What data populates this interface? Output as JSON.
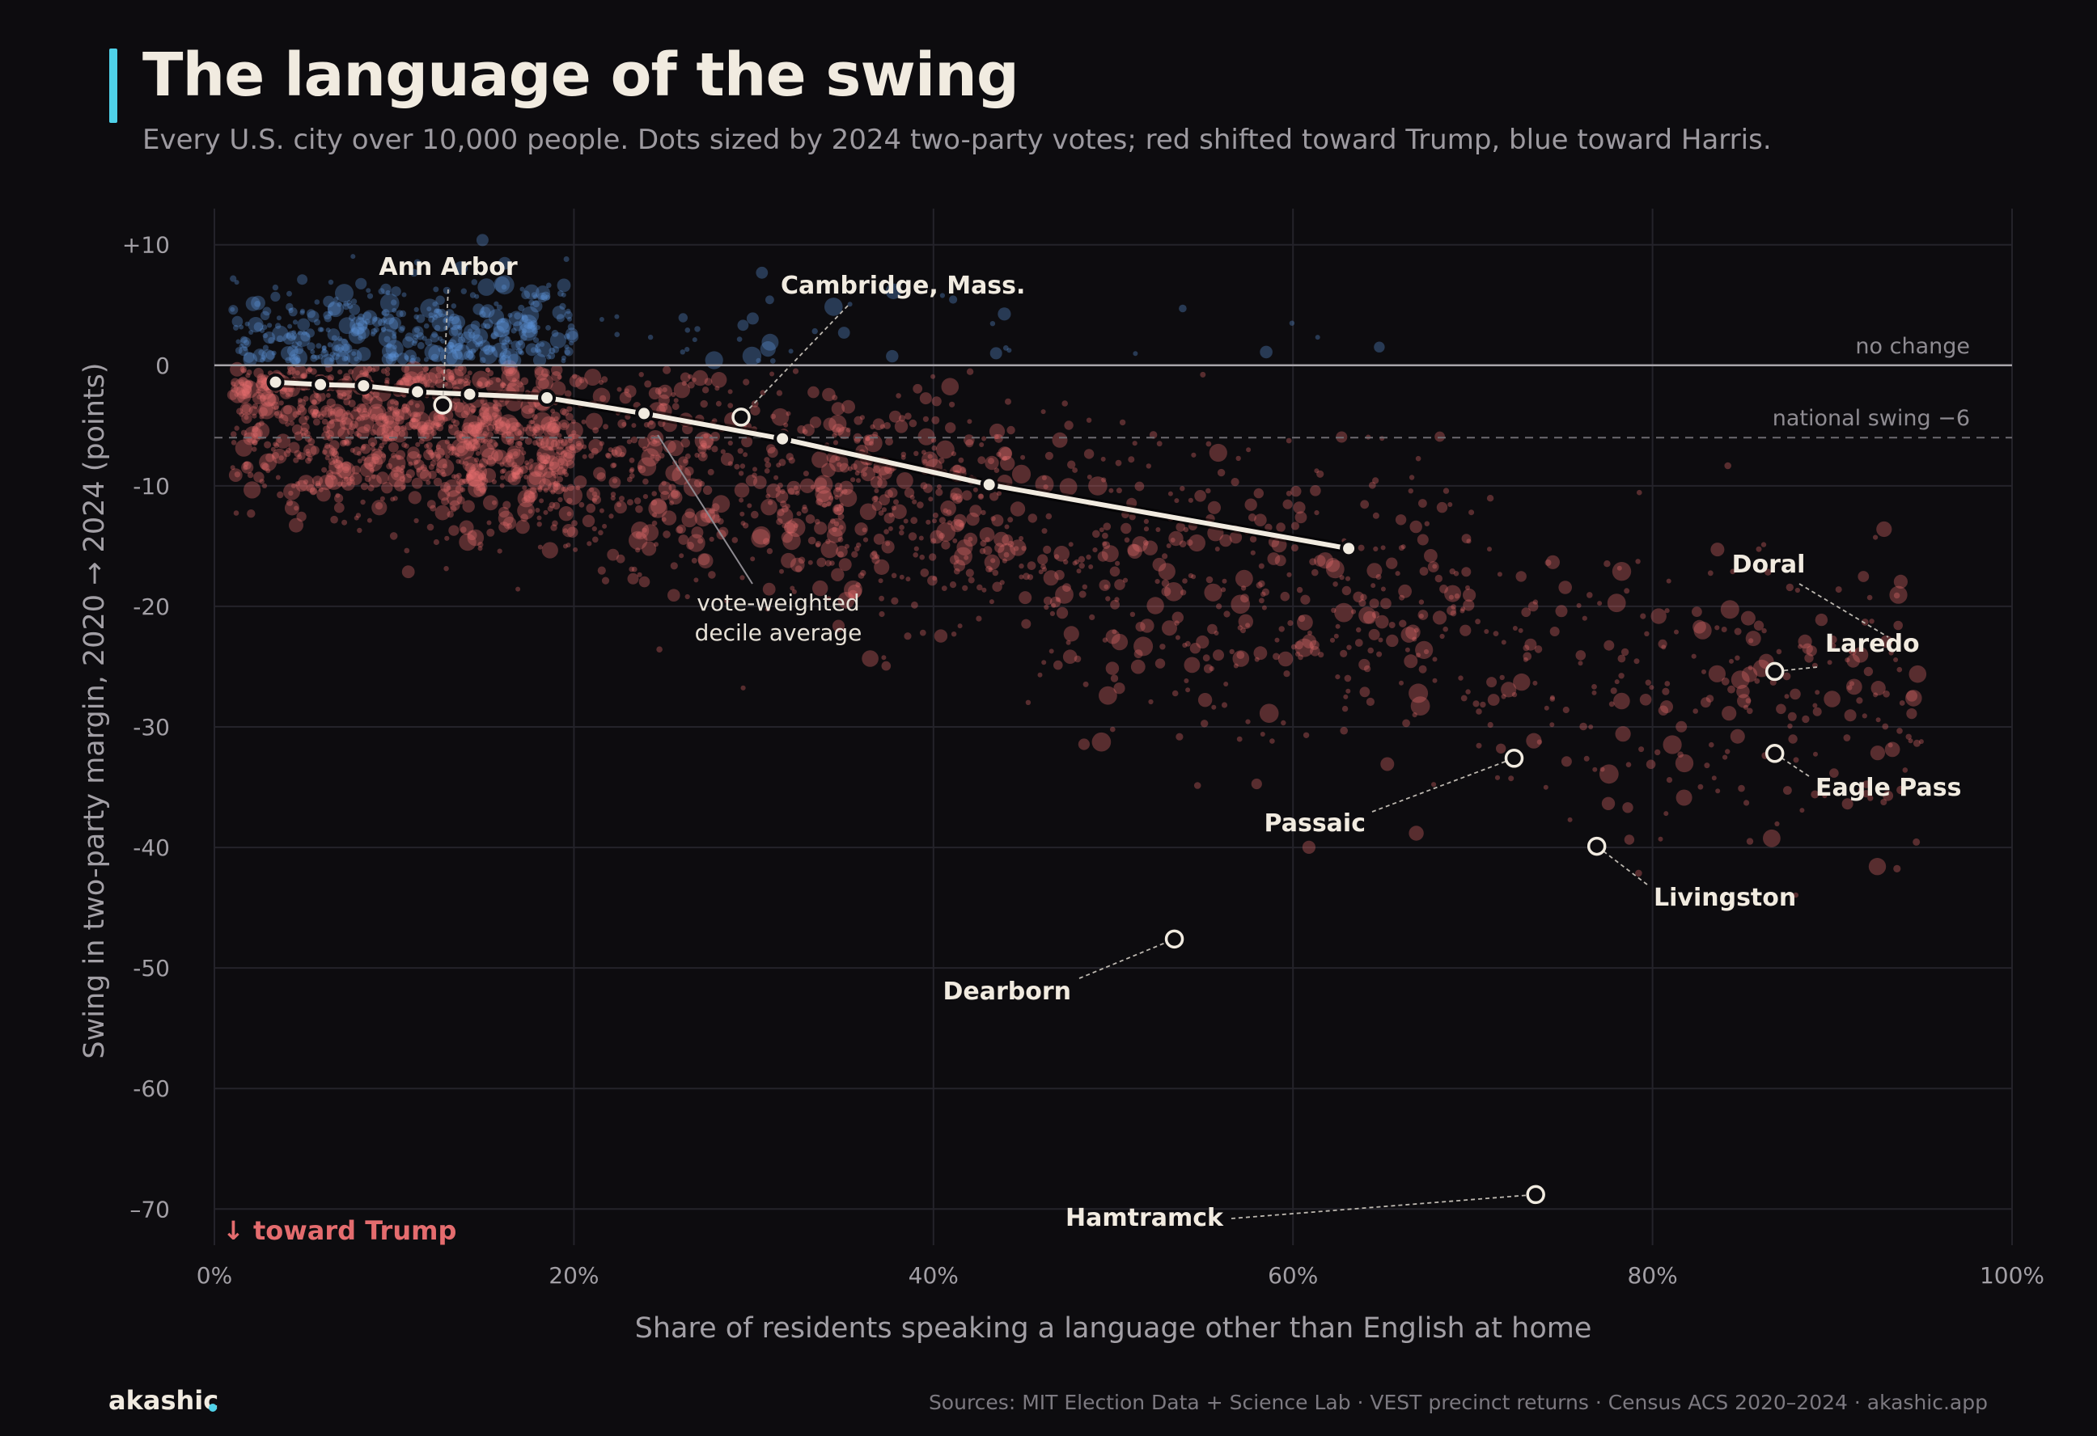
{
  "header": {
    "title": "The language of the swing",
    "subtitle": "Every U.S. city over 10,000 people. Dots sized by 2024 two-party votes; red shifted toward Trump, blue toward Harris."
  },
  "footer": {
    "brand": "akashic",
    "source": "Sources: MIT Election Data + Science Lab · VEST precinct returns · Census ACS 2020–2024 · akashic.app"
  },
  "colors": {
    "background": "#0d0c0f",
    "accent": "#4fd1e8",
    "trump_red": "#e46c6e",
    "harris_blue": "#5b93d6",
    "line": "#f1ebe0"
  },
  "chart_data": {
    "type": "scatter",
    "xlabel": "Share of residents speaking a language other than English at home",
    "ylabel": "Swing in two-party margin, 2020 → 2024 (points)",
    "xlim": [
      0,
      100
    ],
    "ylim": [
      -73,
      13
    ],
    "x_ticks": [
      0,
      20,
      40,
      60,
      80,
      100
    ],
    "x_tick_labels": [
      "0%",
      "20%",
      "40%",
      "60%",
      "80%",
      "100%"
    ],
    "y_ticks": [
      10,
      0,
      -10,
      -20,
      -30,
      -40,
      -50,
      -60,
      -70
    ],
    "y_tick_labels": [
      "+10",
      "0",
      "-10",
      "-20",
      "-30",
      "-40",
      "-50",
      "-60",
      "–70"
    ],
    "grid": true,
    "reference_lines": [
      {
        "y": 0,
        "label": "no change",
        "style": "solid"
      },
      {
        "y": -6,
        "label": "national swing  −6",
        "style": "dashed"
      }
    ],
    "direction_label": "↓ toward Trump",
    "decile_average": {
      "label": "vote-weighted decile average",
      "label_lines": [
        "vote-weighted",
        "decile average"
      ],
      "x": [
        3.4,
        5.9,
        8.3,
        11.3,
        14.2,
        18.5,
        23.9,
        31.6,
        43.1,
        63.1
      ],
      "y": [
        -1.4,
        -1.6,
        -1.7,
        -2.2,
        -2.4,
        -2.7,
        -4.0,
        -6.1,
        -9.9,
        -15.2
      ]
    },
    "highlighted_cities": [
      {
        "name": "Ann Arbor",
        "x": 12.7,
        "y": -3.3
      },
      {
        "name": "Cambridge, Mass.",
        "x": 29.3,
        "y": -4.3
      },
      {
        "name": "Laredo",
        "x": 86.8,
        "y": -25.4
      },
      {
        "name": "Doral",
        "x": 86.8,
        "y": -25.4
      },
      {
        "name": "Eagle Pass",
        "x": 86.8,
        "y": -32.2
      },
      {
        "name": "Passaic",
        "x": 72.3,
        "y": -32.6
      },
      {
        "name": "Livingston",
        "x": 76.9,
        "y": -39.9
      },
      {
        "name": "Dearborn",
        "x": 53.4,
        "y": -47.6
      },
      {
        "name": "Hamtramck",
        "x": 73.5,
        "y": -68.8
      }
    ],
    "cities_summary": {
      "series": [
        "shifted toward Trump",
        "shifted toward Harris"
      ],
      "cluster_bands": [
        {
          "x_range": [
            1,
            20
          ],
          "y_center": -4,
          "spread": 4,
          "share_toward_harris": 0.3
        },
        {
          "x_range": [
            20,
            45
          ],
          "y_center": -8,
          "spread": 5,
          "share_toward_harris": 0.04
        },
        {
          "x_range": [
            45,
            70
          ],
          "y_center": -16,
          "spread": 6,
          "share_toward_harris": 0.01
        },
        {
          "x_range": [
            70,
            95
          ],
          "y_center": -24,
          "spread": 6,
          "share_toward_harris": 0
        }
      ]
    }
  }
}
